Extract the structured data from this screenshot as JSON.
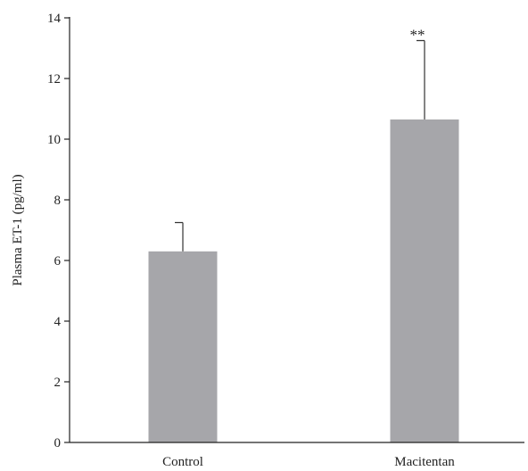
{
  "chart_data": {
    "type": "bar",
    "title": "",
    "xlabel": "",
    "ylabel": "Plasma ET-1 (pg/ml)",
    "ylim": [
      0,
      14
    ],
    "yticks": [
      0,
      2,
      4,
      6,
      8,
      10,
      12,
      14
    ],
    "categories": [
      "Control",
      "Macitentan"
    ],
    "values": [
      6.3,
      10.65
    ],
    "error_upper": [
      0.95,
      2.6
    ],
    "annotations": [
      "",
      "**"
    ],
    "bar_color": "#a6a6aa",
    "grid": false,
    "legend": "none"
  }
}
